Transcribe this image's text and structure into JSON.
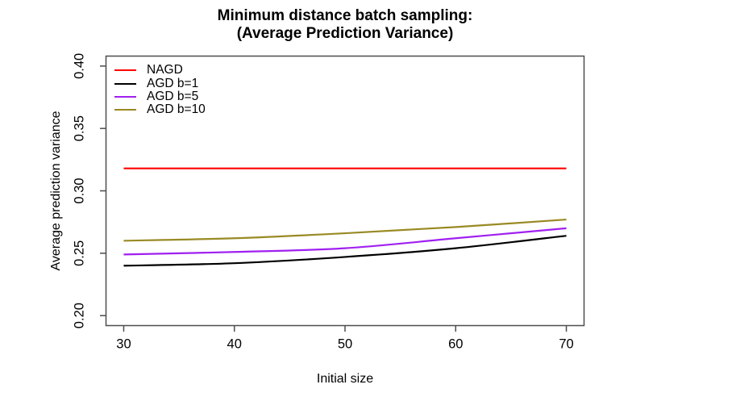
{
  "title": {
    "line1": "Minimum distance batch sampling:",
    "line2": "(Average Prediction Variance)"
  },
  "chart_data": {
    "type": "line",
    "x": [
      30,
      40,
      50,
      60,
      70
    ],
    "series": [
      {
        "name": "NAGD",
        "color": "#ff0000",
        "values": [
          0.318,
          0.318,
          0.318,
          0.318,
          0.318
        ]
      },
      {
        "name": "AGD b=1",
        "color": "#000000",
        "values": [
          0.24,
          0.242,
          0.247,
          0.254,
          0.264
        ]
      },
      {
        "name": "AGD b=5",
        "color": "#a020f0",
        "values": [
          0.249,
          0.251,
          0.254,
          0.262,
          0.27
        ]
      },
      {
        "name": "AGD b=10",
        "color": "#998a24",
        "values": [
          0.26,
          0.262,
          0.266,
          0.271,
          0.277
        ]
      }
    ],
    "xlabel": "Initial size",
    "ylabel": "Average prediction variance",
    "x_ticks": [
      "30",
      "40",
      "50",
      "60",
      "70"
    ],
    "y_ticks": [
      "0.20",
      "0.25",
      "0.30",
      "0.35",
      "0.40"
    ],
    "xlim": [
      28.4,
      71.6
    ],
    "ylim": [
      0.192,
      0.408
    ],
    "grid": false,
    "legend_position": "top-left",
    "axis_color": "#4d4d4d",
    "line_width": 2.2
  }
}
